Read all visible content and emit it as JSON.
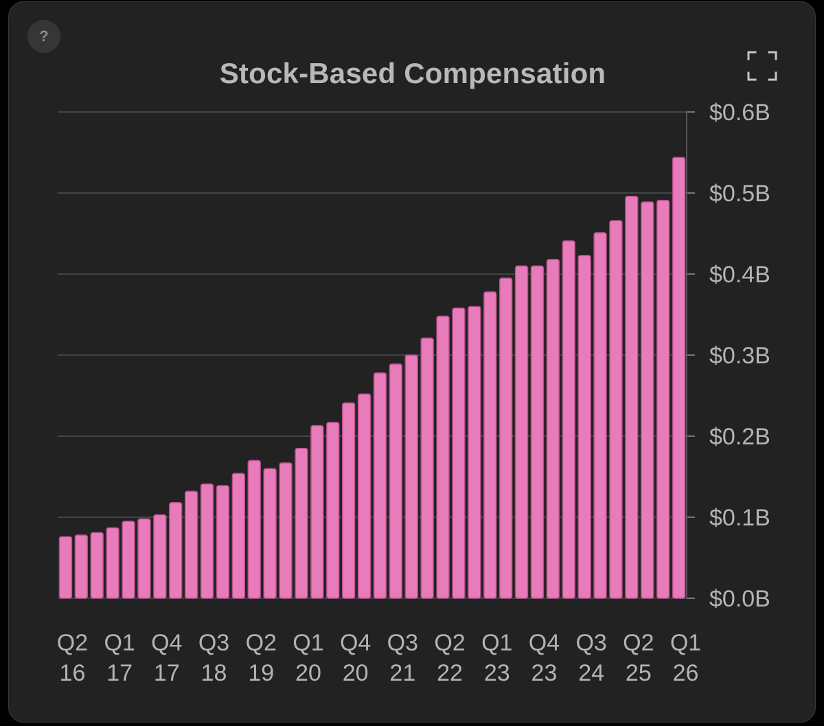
{
  "help_label": "?",
  "expand_icon": "expand-icon",
  "colors": {
    "bar_fill": "#e87cba",
    "bar_stroke": "#b84f8b",
    "gridline": "#444444",
    "text": "#b4b4b4"
  },
  "chart_data": {
    "type": "bar",
    "title": "Stock-Based Compensation",
    "xlabel": "",
    "ylabel": "",
    "y_unit": "billion USD",
    "ylim": [
      0,
      0.6
    ],
    "y_ticks": [
      {
        "value": 0.0,
        "label": "$0.0B"
      },
      {
        "value": 0.1,
        "label": "$0.1B"
      },
      {
        "value": 0.2,
        "label": "$0.2B"
      },
      {
        "value": 0.3,
        "label": "$0.3B"
      },
      {
        "value": 0.4,
        "label": "$0.4B"
      },
      {
        "value": 0.5,
        "label": "$0.5B"
      },
      {
        "value": 0.6,
        "label": "$0.6B"
      }
    ],
    "x_tick_labels": [
      {
        "quarter": "Q2",
        "year": "16",
        "category_index": 0
      },
      {
        "quarter": "Q1",
        "year": "17",
        "category_index": 3
      },
      {
        "quarter": "Q4",
        "year": "17",
        "category_index": 6
      },
      {
        "quarter": "Q3",
        "year": "18",
        "category_index": 9
      },
      {
        "quarter": "Q2",
        "year": "19",
        "category_index": 12
      },
      {
        "quarter": "Q1",
        "year": "20",
        "category_index": 15
      },
      {
        "quarter": "Q4",
        "year": "20",
        "category_index": 18
      },
      {
        "quarter": "Q3",
        "year": "21",
        "category_index": 21
      },
      {
        "quarter": "Q2",
        "year": "22",
        "category_index": 24
      },
      {
        "quarter": "Q1",
        "year": "23",
        "category_index": 27
      },
      {
        "quarter": "Q4",
        "year": "23",
        "category_index": 30
      },
      {
        "quarter": "Q3",
        "year": "24",
        "category_index": 33
      },
      {
        "quarter": "Q2",
        "year": "25",
        "category_index": 36
      },
      {
        "quarter": "Q1",
        "year": "26",
        "category_index": 39
      }
    ],
    "categories": [
      "Q2 16",
      "Q3 16",
      "Q4 16",
      "Q1 17",
      "Q2 17",
      "Q3 17",
      "Q4 17",
      "Q1 18",
      "Q2 18",
      "Q3 18",
      "Q4 18",
      "Q1 19",
      "Q2 19",
      "Q3 19",
      "Q4 19",
      "Q1 20",
      "Q2 20",
      "Q3 20",
      "Q4 20",
      "Q1 21",
      "Q2 21",
      "Q3 21",
      "Q4 21",
      "Q1 22",
      "Q2 22",
      "Q3 22",
      "Q4 22",
      "Q1 23",
      "Q2 23",
      "Q3 23",
      "Q4 23",
      "Q1 24",
      "Q2 24",
      "Q3 24",
      "Q4 24",
      "Q1 25",
      "Q2 25",
      "Q3 25",
      "Q4 25",
      "Q1 26"
    ],
    "values": [
      0.076,
      0.078,
      0.081,
      0.087,
      0.095,
      0.098,
      0.103,
      0.118,
      0.132,
      0.141,
      0.139,
      0.154,
      0.17,
      0.16,
      0.167,
      0.185,
      0.213,
      0.217,
      0.241,
      0.252,
      0.278,
      0.289,
      0.3,
      0.321,
      0.348,
      0.358,
      0.36,
      0.378,
      0.395,
      0.41,
      0.41,
      0.418,
      0.441,
      0.423,
      0.451,
      0.466,
      0.496,
      0.489,
      0.491,
      0.544
    ],
    "grid": true,
    "y_axis_position": "right"
  }
}
